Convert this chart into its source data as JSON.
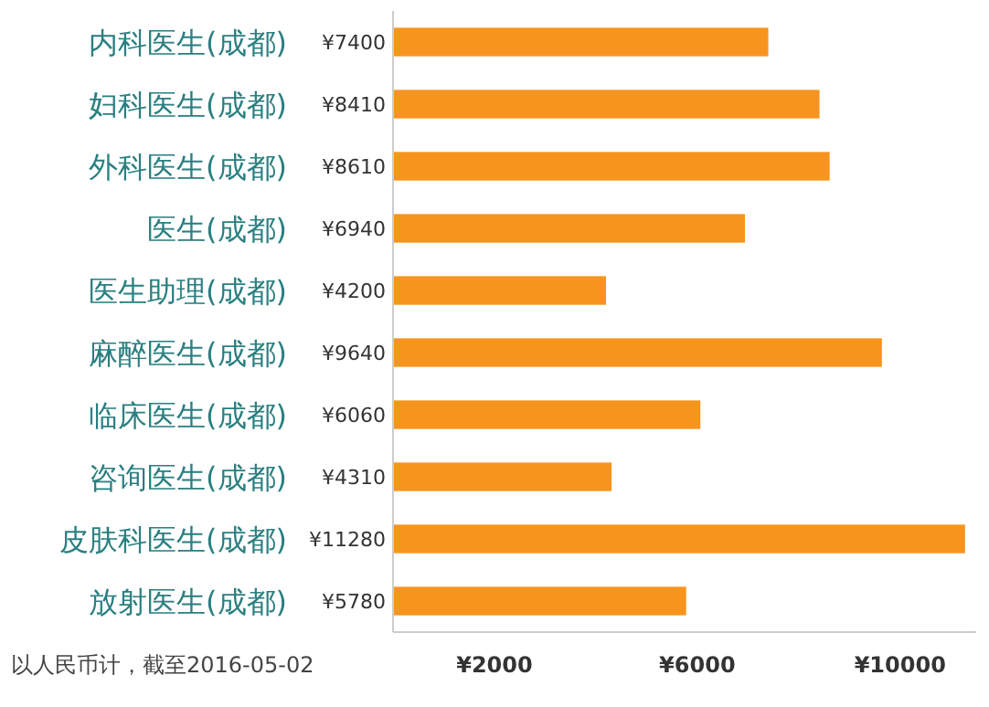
{
  "chart_data": {
    "type": "bar",
    "orientation": "horizontal",
    "categories": [
      "内科医生(成都)",
      "妇科医生(成都)",
      "外科医生(成都)",
      "医生(成都)",
      "医生助理(成都)",
      "麻醉医生(成都)",
      "临床医生(成都)",
      "咨询医生(成都)",
      "皮肤科医生(成都)",
      "放射医生(成都)"
    ],
    "values": [
      7400,
      8410,
      8610,
      6940,
      4200,
      9640,
      6060,
      4310,
      11280,
      5780
    ],
    "value_labels": [
      "¥7400",
      "¥8410",
      "¥8610",
      "¥6940",
      "¥4200",
      "¥9640",
      "¥6060",
      "¥4310",
      "¥11280",
      "¥5780"
    ],
    "color": "#f7941d",
    "xlim": [
      0,
      11500
    ],
    "xticks": [
      {
        "value": 2000,
        "label": "¥2000"
      },
      {
        "value": 6000,
        "label": "¥6000"
      },
      {
        "value": 10000,
        "label": "¥10000"
      }
    ],
    "grid": false,
    "annotations": [
      "以人民币计，截至2016-05-02"
    ]
  }
}
